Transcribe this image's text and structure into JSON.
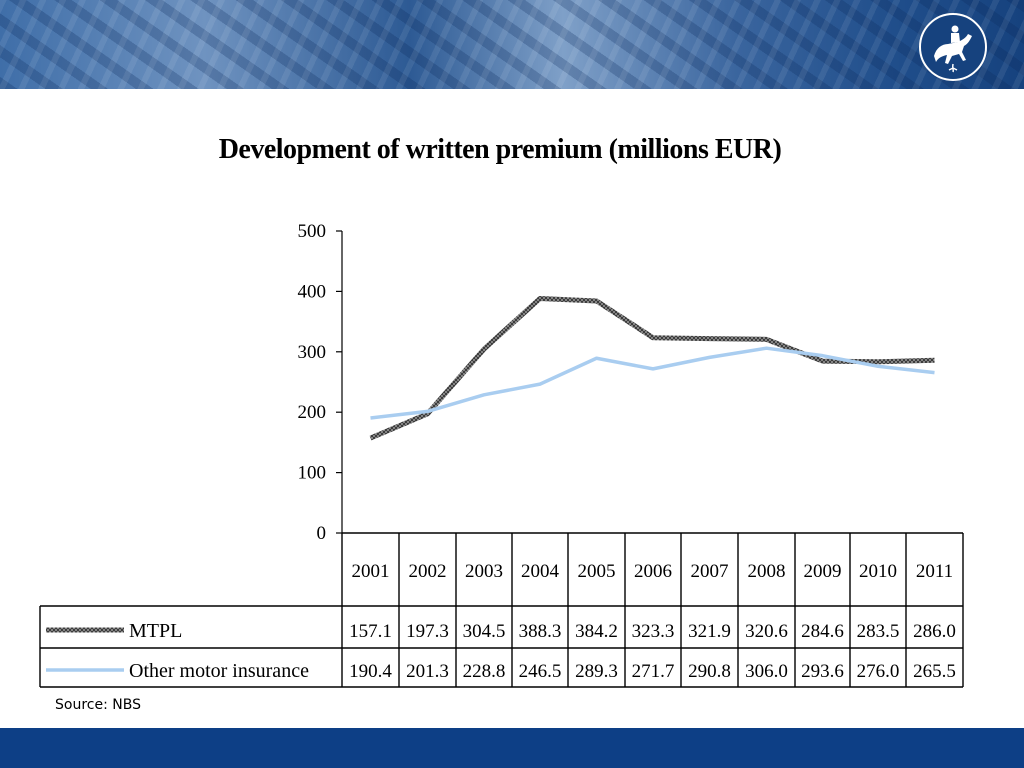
{
  "chart_data": {
    "type": "line",
    "title": "Development of written premium (millions EUR)",
    "categories": [
      "2001",
      "2002",
      "2003",
      "2004",
      "2005",
      "2006",
      "2007",
      "2008",
      "2009",
      "2010",
      "2011"
    ],
    "series": [
      {
        "name": "MTPL",
        "values": [
          157.1,
          197.3,
          304.5,
          388.3,
          384.2,
          323.3,
          321.9,
          320.6,
          284.6,
          283.5,
          286.0
        ],
        "color": "#8a8a8a",
        "style": "hatched-gray"
      },
      {
        "name": "Other motor insurance",
        "values": [
          190.4,
          201.3,
          228.8,
          246.5,
          289.3,
          271.7,
          290.8,
          306.0,
          293.6,
          276.0,
          265.5
        ],
        "color": "#a9cdf0",
        "style": "solid"
      }
    ],
    "table_values": [
      [
        "157.1",
        "197.3",
        "304.5",
        "388.3",
        "384.2",
        "323.3",
        "321.9",
        "320.6",
        "284.6",
        "283.5",
        "286.0"
      ],
      [
        "190.4",
        "201.3",
        "228.8",
        "246.5",
        "289.3",
        "271.7",
        "290.8",
        "306.0",
        "293.6",
        "276.0",
        "265.5"
      ]
    ],
    "ylim": [
      0,
      500
    ],
    "yticks": [
      "0",
      "100",
      "200",
      "300",
      "400",
      "500"
    ],
    "data_table": true,
    "grid": false
  },
  "footer": {
    "source": "Source: NBS"
  },
  "colors": {
    "footer_bar": "#0d3f86",
    "banner": "#2d5a94"
  }
}
